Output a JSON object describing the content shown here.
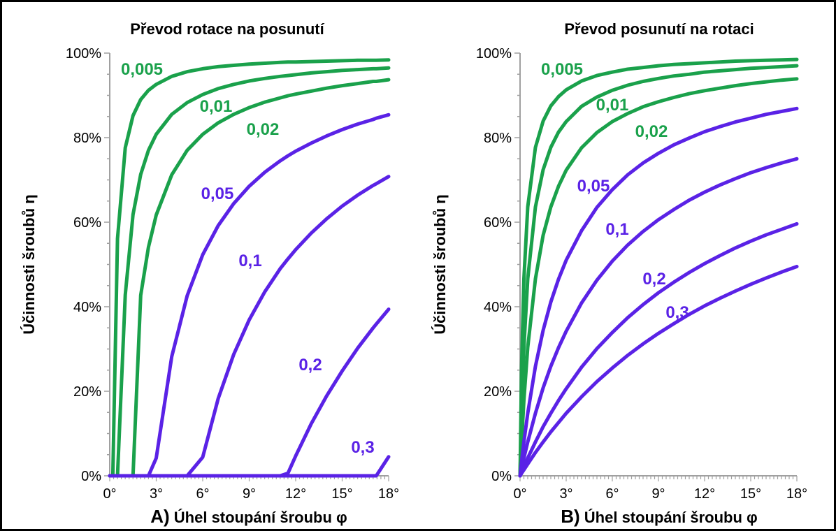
{
  "colors": {
    "green": "#1aa14b",
    "blue": "#5a22e6",
    "axis": "#a0a0a0",
    "text": "#000000"
  },
  "chart_data": [
    {
      "type": "line",
      "title": "Převod rotace na posunutí",
      "xlabel_prefix": "A)",
      "xlabel": " Úhel stoupání šroubu φ",
      "ylabel": "Účinnosti šroubů η",
      "xlim": [
        0,
        18
      ],
      "ylim": [
        0,
        100
      ],
      "x_ticks": [
        "0°",
        "3°",
        "6°",
        "9°",
        "12°",
        "15°",
        "18°"
      ],
      "y_ticks": [
        "0%",
        "20%",
        "40%",
        "60%",
        "80%",
        "100%"
      ],
      "grid": false,
      "mode": "rotation-to-translation",
      "x": [
        0,
        0.2,
        0.5,
        1,
        1.5,
        2,
        2.5,
        3,
        4,
        5,
        6,
        7,
        8,
        9,
        10,
        11,
        11.5,
        12,
        13,
        14,
        15,
        16,
        17,
        17.2,
        18
      ],
      "series": [
        {
          "name": "0,005",
          "color": "green",
          "values": [
            0,
            0,
            56.1,
            77.6,
            85.2,
            89.0,
            91.2,
            92.6,
            94.5,
            95.6,
            96.3,
            96.8,
            97.1,
            97.4,
            97.6,
            97.8,
            97.9,
            97.9,
            98.0,
            98.1,
            98.2,
            98.3,
            98.3,
            98.3,
            98.4
          ]
        },
        {
          "name": "0,01",
          "color": "green",
          "values": [
            0,
            0,
            0,
            42.8,
            61.8,
            71.3,
            77.0,
            80.8,
            85.5,
            88.3,
            90.2,
            91.6,
            92.6,
            93.4,
            94.0,
            94.5,
            94.7,
            94.9,
            95.3,
            95.6,
            95.9,
            96.1,
            96.3,
            96.3,
            96.5
          ]
        },
        {
          "name": "0,02",
          "color": "green",
          "values": [
            0,
            0,
            0,
            0,
            0,
            42.7,
            54.1,
            61.7,
            71.2,
            77.0,
            80.8,
            83.5,
            85.5,
            87.1,
            88.4,
            89.4,
            89.9,
            90.3,
            91.0,
            91.7,
            92.3,
            92.8,
            93.3,
            93.3,
            93.7
          ]
        },
        {
          "name": "0,05",
          "color": "blue",
          "values": [
            0,
            0,
            0,
            0,
            0,
            0,
            0,
            4.2,
            28.2,
            42.6,
            52.3,
            59.2,
            64.4,
            68.5,
            71.8,
            74.5,
            75.7,
            76.8,
            78.7,
            80.4,
            81.9,
            83.2,
            84.3,
            84.6,
            85.4
          ]
        },
        {
          "name": "0,1",
          "color": "blue",
          "values": [
            0,
            0,
            0,
            0,
            0,
            0,
            0,
            0,
            0,
            0,
            4.4,
            18.3,
            28.7,
            36.9,
            43.5,
            49.0,
            51.3,
            53.5,
            57.4,
            60.8,
            63.8,
            66.4,
            68.7,
            69.1,
            70.8
          ]
        },
        {
          "name": "0,2",
          "color": "blue",
          "values": [
            0,
            0,
            0,
            0,
            0,
            0,
            0,
            0,
            0,
            0,
            0,
            0,
            0,
            0,
            0,
            0,
            0.6,
            4.7,
            12.3,
            18.9,
            24.8,
            30.2,
            35.0,
            35.9,
            39.4
          ]
        },
        {
          "name": "0,3",
          "color": "blue",
          "values": [
            0,
            0,
            0,
            0,
            0,
            0,
            0,
            0,
            0,
            0,
            0,
            0,
            0,
            0,
            0,
            0,
            0,
            0,
            0,
            0,
            0,
            0,
            0,
            0,
            4.5
          ]
        }
      ]
    },
    {
      "type": "line",
      "title": "Převod posunutí na rotaci",
      "xlabel_prefix": "B)",
      "xlabel": " Úhel stoupání šroubu φ",
      "ylabel": "Účinnosti šroubů η",
      "xlim": [
        0,
        18
      ],
      "ylim": [
        0,
        100
      ],
      "x_ticks": [
        "0°",
        "3°",
        "6°",
        "9°",
        "12°",
        "15°",
        "18°"
      ],
      "y_ticks": [
        "0%",
        "20%",
        "40%",
        "60%",
        "80%",
        "100%"
      ],
      "grid": false,
      "mode": "translation-to-rotation",
      "x": [
        0,
        0.1,
        0.25,
        0.5,
        1,
        1.5,
        2,
        2.5,
        3,
        4,
        5,
        6,
        7,
        8,
        9,
        10,
        11,
        12,
        13,
        14,
        15,
        16,
        17,
        18
      ],
      "series": [
        {
          "name": "0,005",
          "color": "green",
          "values": [
            0,
            25.9,
            46.6,
            63.6,
            77.7,
            83.9,
            87.5,
            89.7,
            91.3,
            93.4,
            94.7,
            95.5,
            96.2,
            96.6,
            97.0,
            97.3,
            97.5,
            97.7,
            97.9,
            98.1,
            98.2,
            98.3,
            98.4,
            98.5
          ]
        },
        {
          "name": "0,01",
          "color": "green",
          "values": [
            0,
            14.9,
            30.4,
            46.6,
            63.6,
            72.4,
            77.7,
            81.3,
            83.8,
            87.4,
            89.6,
            91.2,
            92.4,
            93.3,
            94.0,
            94.6,
            95.0,
            95.5,
            95.8,
            96.1,
            96.4,
            96.6,
            96.8,
            97.0
          ]
        },
        {
          "name": "0,02",
          "color": "green",
          "values": [
            0,
            8.0,
            17.9,
            30.4,
            46.6,
            56.9,
            63.6,
            68.5,
            72.3,
            77.6,
            81.2,
            83.8,
            85.7,
            87.3,
            88.5,
            89.5,
            90.4,
            91.1,
            91.7,
            92.3,
            92.8,
            93.2,
            93.6,
            93.9
          ]
        },
        {
          "name": "0,05",
          "color": "blue",
          "values": [
            0,
            3.4,
            8.0,
            14.8,
            25.9,
            34.4,
            41.1,
            46.5,
            51.0,
            58.0,
            63.5,
            67.7,
            71.2,
            74.0,
            76.3,
            78.3,
            79.9,
            81.4,
            82.6,
            83.7,
            84.6,
            85.5,
            86.2,
            86.9
          ]
        },
        {
          "name": "0,1",
          "color": "blue",
          "values": [
            0,
            1.7,
            4.2,
            8.0,
            14.8,
            20.8,
            25.9,
            30.3,
            34.2,
            40.9,
            46.3,
            50.8,
            54.6,
            57.8,
            60.6,
            63.0,
            65.2,
            67.1,
            68.8,
            70.3,
            71.7,
            72.9,
            74.0,
            75.0
          ]
        },
        {
          "name": "0,2",
          "color": "blue",
          "values": [
            0,
            0.9,
            2.1,
            4.2,
            8.0,
            11.6,
            14.8,
            17.8,
            20.6,
            25.7,
            30.1,
            33.9,
            37.4,
            40.5,
            43.3,
            45.8,
            48.1,
            50.2,
            52.1,
            53.9,
            55.5,
            57.0,
            58.3,
            59.6
          ]
        },
        {
          "name": "0,3",
          "color": "blue",
          "values": [
            0,
            0.6,
            1.4,
            2.8,
            5.5,
            8.0,
            10.4,
            12.6,
            14.8,
            18.7,
            22.3,
            25.5,
            28.5,
            31.2,
            33.7,
            36.0,
            38.2,
            40.2,
            42.0,
            43.7,
            45.3,
            46.8,
            48.2,
            49.5
          ]
        }
      ]
    }
  ]
}
